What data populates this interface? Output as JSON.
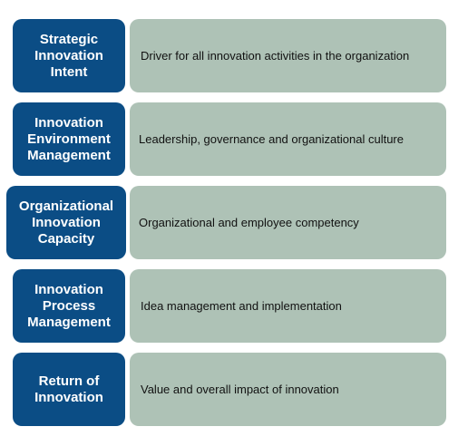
{
  "rows": [
    {
      "label": "Strategic\nInnovation\nIntent",
      "description": "Driver for all innovation activities in the organization"
    },
    {
      "label": "Innovation\nEnvironment\nManagement",
      "description": "Leadership, governance and organizational culture"
    },
    {
      "label": "Organizational\nInnovation\nCapacity",
      "description": "Organizational and employee competency"
    },
    {
      "label": "Innovation\nProcess\nManagement",
      "description": "Idea management and implementation"
    },
    {
      "label": "Return of\nInnovation",
      "description": "Value and overall impact of innovation"
    }
  ],
  "colors": {
    "left": "#0b4d85",
    "right": "#aec2b6"
  }
}
